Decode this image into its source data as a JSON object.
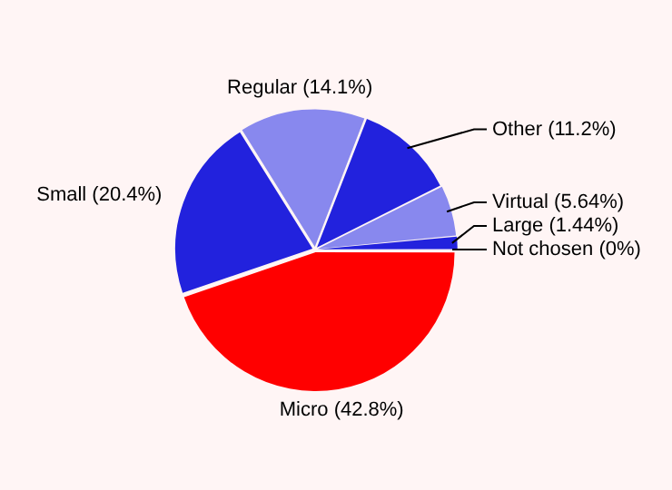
{
  "chart_data": {
    "type": "pie",
    "categories": [
      "Micro (42.8%)",
      "Small (20.4%)",
      "Regular (14.1%)",
      "Other (11.2%)",
      "Virtual (5.64%)",
      "Large (1.44%)",
      "Not chosen (0%)"
    ],
    "values": [
      42.8,
      20.4,
      14.1,
      11.2,
      5.64,
      1.44,
      0
    ],
    "colors": [
      "#ff0000",
      "#2222dd",
      "#8888ee",
      "#2222dd",
      "#8888ee",
      "#2222dd",
      "#8888ee"
    ]
  }
}
